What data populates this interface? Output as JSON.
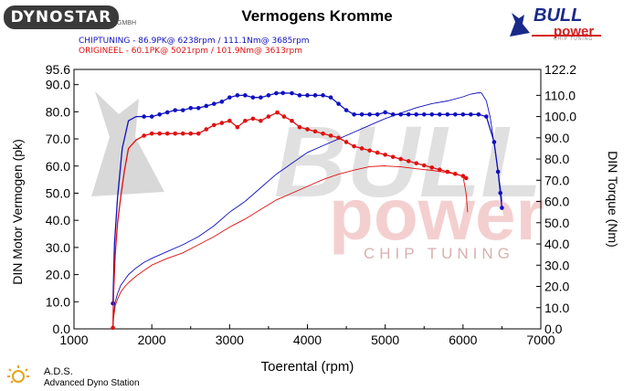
{
  "header": {
    "logo_text": "DYNOSTAR",
    "logo_sub": "GMBH",
    "title": "Vermogens Kromme",
    "brand_bull": "BULL",
    "brand_power": "power",
    "brand_chip": "CHIP TUNING"
  },
  "legend": {
    "chiptuning": "CHIPTUNING  - 86.9PK@ 6238rpm / 111.1Nm@ 3685rpm",
    "origineel": "ORIGINEEL  - 60.1PK@ 5021rpm / 101.9Nm@ 3613rpm"
  },
  "footer": {
    "ads_title": "A.D.S.",
    "ads_subtitle": "Advanced Dyno Station"
  },
  "watermark": {
    "bull": "BULL",
    "power": "power",
    "chip": "CHIP TUNING"
  },
  "colors": {
    "chiptuning": "#1010c0",
    "origineel": "#e01010",
    "watermark_dark": "#c8c8c8",
    "watermark_red": "#f2c4c4"
  },
  "chart_data": {
    "type": "line",
    "xlabel": "Toerental (rpm)",
    "ylabel_left": "DIN Motor Vermogen (pk)",
    "ylabel_right": "DIN Torque (Nm)",
    "xlim": [
      1000,
      7000
    ],
    "ylim_left": [
      0,
      95.6
    ],
    "ylim_right": [
      0,
      122.2
    ],
    "x_ticks": [
      "1000",
      "2000",
      "3000",
      "4000",
      "5000",
      "6000",
      "7000"
    ],
    "y_ticks_left": [
      "0.0",
      "10.0",
      "20.0",
      "30.0",
      "40.0",
      "50.0",
      "60.0",
      "70.0",
      "80.0",
      "90.0",
      "95.6"
    ],
    "y_ticks_right": [
      "0.0",
      "10.0",
      "20.0",
      "30.0",
      "40.0",
      "50.0",
      "60.0",
      "70.0",
      "80.0",
      "90.0",
      "100.0",
      "110.0",
      "122.2"
    ],
    "grid": false,
    "series": [
      {
        "name": "CHIPTUNING",
        "measure": "power",
        "axis": "left",
        "color": "#1010c0",
        "x": [
          1500,
          1510,
          1530,
          1560,
          1600,
          1650,
          1700,
          1800,
          1900,
          2000,
          2200,
          2400,
          2600,
          2800,
          3000,
          3200,
          3400,
          3600,
          3800,
          4000,
          4200,
          4400,
          4600,
          4800,
          5000,
          5200,
          5400,
          5600,
          5800,
          6000,
          6100,
          6200,
          6238,
          6300,
          6350,
          6400,
          6450,
          6480,
          6500
        ],
        "y": [
          0.5,
          5,
          10,
          13,
          16,
          18,
          20,
          22.5,
          24.5,
          26,
          28.5,
          31,
          34,
          38,
          43,
          47,
          52,
          57,
          61,
          65,
          67.5,
          70,
          72.5,
          75,
          77.5,
          79.5,
          81.5,
          83,
          84,
          85.5,
          86.5,
          87,
          86.9,
          84,
          78,
          68,
          58,
          52,
          47
        ]
      },
      {
        "name": "CHIPTUNING",
        "measure": "torque",
        "axis": "right",
        "color": "#1010c0",
        "x": [
          1500,
          1520,
          1560,
          1620,
          1700,
          1800,
          1900,
          2000,
          2100,
          2200,
          2300,
          2400,
          2500,
          2600,
          2700,
          2800,
          2900,
          3000,
          3100,
          3200,
          3300,
          3400,
          3500,
          3600,
          3685,
          3800,
          3900,
          4000,
          4100,
          4200,
          4300,
          4400,
          4500,
          4600,
          4700,
          4800,
          4900,
          5000,
          5100,
          5200,
          5300,
          5400,
          5500,
          5600,
          5700,
          5800,
          5900,
          6000,
          6100,
          6200,
          6300,
          6400,
          6450,
          6480,
          6500
        ],
        "y": [
          12,
          40,
          62,
          85,
          98,
          100,
          100,
          100,
          101,
          102,
          103,
          103,
          104,
          104,
          105,
          106,
          107,
          109,
          110,
          110,
          109,
          109,
          110,
          111,
          111.1,
          111,
          110,
          110,
          110,
          110,
          109,
          106,
          103,
          101,
          101,
          101,
          101,
          102,
          101,
          101,
          101,
          101,
          101,
          101,
          101,
          101,
          101,
          101,
          101,
          101,
          100,
          88,
          74,
          64,
          57
        ]
      },
      {
        "name": "ORIGINEEL",
        "measure": "power",
        "axis": "left",
        "color": "#e01010",
        "x": [
          1500,
          1510,
          1530,
          1560,
          1600,
          1650,
          1700,
          1800,
          1900,
          2000,
          2200,
          2400,
          2600,
          2800,
          3000,
          3200,
          3400,
          3600,
          3800,
          4000,
          4200,
          4400,
          4600,
          4800,
          5000,
          5021,
          5200,
          5400,
          5600,
          5800,
          5900,
          6000,
          6040,
          6060
        ],
        "y": [
          0.5,
          4,
          8.5,
          11,
          13.5,
          15.5,
          17,
          19.5,
          21.5,
          23.5,
          26,
          28,
          31,
          34,
          37.5,
          40.5,
          44,
          47.5,
          50,
          52.5,
          55,
          57,
          58.5,
          59.8,
          60.1,
          60,
          59.7,
          59,
          58.4,
          57.6,
          57,
          56.3,
          50,
          43
        ]
      },
      {
        "name": "ORIGINEEL",
        "measure": "torque",
        "axis": "right",
        "color": "#e01010",
        "x": [
          1500,
          1510,
          1530,
          1560,
          1600,
          1650,
          1700,
          1800,
          1900,
          2000,
          2100,
          2200,
          2300,
          2400,
          2500,
          2600,
          2700,
          2800,
          2900,
          3000,
          3100,
          3200,
          3300,
          3400,
          3500,
          3613,
          3700,
          3800,
          3900,
          4000,
          4100,
          4200,
          4300,
          4400,
          4500,
          4600,
          4700,
          4800,
          4900,
          5000,
          5100,
          5200,
          5300,
          5400,
          5500,
          5600,
          5700,
          5800,
          5900,
          6000,
          6040
        ],
        "y": [
          0.5,
          18,
          35,
          50,
          62,
          75,
          85,
          89,
          91,
          92,
          92,
          92,
          92,
          92,
          92,
          92,
          94,
          96,
          97,
          98,
          95,
          98,
          99,
          98,
          100,
          101.9,
          100,
          98,
          95,
          94,
          93,
          92,
          91,
          90,
          88,
          86,
          85,
          84,
          83,
          82,
          81,
          80,
          79,
          78,
          77,
          76,
          75,
          74,
          73,
          72,
          71
        ]
      }
    ]
  }
}
